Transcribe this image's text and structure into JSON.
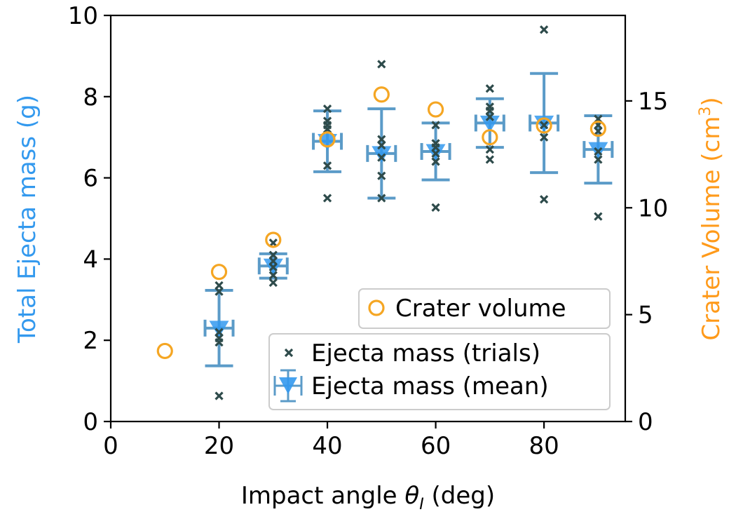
{
  "chart_data": {
    "type": "scatter",
    "xlabel_main": "Impact angle ",
    "xlabel_symbol": "θ",
    "xlabel_sub": "I",
    "xlabel_unit": " (deg)",
    "ylabel_left": "Total Ejecta mass (g)",
    "ylabel_right_main": "Crater Volume (cm",
    "ylabel_right_sup": "3",
    "ylabel_right_end": ")",
    "xlim": [
      0,
      95
    ],
    "ylim_left": [
      0,
      10
    ],
    "ylim_right": [
      0,
      19
    ],
    "x_ticks": [
      0,
      20,
      40,
      60,
      80
    ],
    "x_tick_labels": [
      "0",
      "20",
      "40",
      "60",
      "80"
    ],
    "y_left_ticks": [
      0,
      2,
      4,
      6,
      8,
      10
    ],
    "y_left_tick_labels": [
      "0",
      "2",
      "4",
      "6",
      "8",
      "10"
    ],
    "y_right_ticks": [
      0,
      5,
      10,
      15
    ],
    "y_right_tick_labels": [
      "0",
      "5",
      "10",
      "15"
    ],
    "colors": {
      "left_axis": "#3399ee",
      "right_axis": "#ff9a1a",
      "trials": "#2e4b4b",
      "mean": "#3399ee",
      "errorbar": "#5b9bc8",
      "crater": "#f5a623"
    },
    "series": [
      {
        "name": "Ejecta mass (trials)",
        "axis": "left",
        "points": [
          {
            "x": 20,
            "y": 0.63
          },
          {
            "x": 20,
            "y": 1.95
          },
          {
            "x": 20,
            "y": 2.05
          },
          {
            "x": 20,
            "y": 2.2
          },
          {
            "x": 20,
            "y": 3.2
          },
          {
            "x": 20,
            "y": 3.35
          },
          {
            "x": 30,
            "y": 3.42
          },
          {
            "x": 30,
            "y": 3.6
          },
          {
            "x": 30,
            "y": 3.8
          },
          {
            "x": 30,
            "y": 3.95
          },
          {
            "x": 30,
            "y": 4.1
          },
          {
            "x": 30,
            "y": 4.4
          },
          {
            "x": 40,
            "y": 5.5
          },
          {
            "x": 40,
            "y": 6.3
          },
          {
            "x": 40,
            "y": 7.2
          },
          {
            "x": 40,
            "y": 7.3
          },
          {
            "x": 40,
            "y": 7.4
          },
          {
            "x": 40,
            "y": 7.7
          },
          {
            "x": 50,
            "y": 5.5
          },
          {
            "x": 50,
            "y": 6.05
          },
          {
            "x": 50,
            "y": 6.5
          },
          {
            "x": 50,
            "y": 6.8
          },
          {
            "x": 50,
            "y": 6.95
          },
          {
            "x": 50,
            "y": 8.8
          },
          {
            "x": 60,
            "y": 5.27
          },
          {
            "x": 60,
            "y": 6.4
          },
          {
            "x": 60,
            "y": 6.6
          },
          {
            "x": 60,
            "y": 6.75
          },
          {
            "x": 60,
            "y": 6.85
          },
          {
            "x": 60,
            "y": 7.3
          },
          {
            "x": 70,
            "y": 6.45
          },
          {
            "x": 70,
            "y": 6.7
          },
          {
            "x": 70,
            "y": 7.5
          },
          {
            "x": 70,
            "y": 7.65
          },
          {
            "x": 70,
            "y": 7.75
          },
          {
            "x": 70,
            "y": 8.2
          },
          {
            "x": 80,
            "y": 5.47
          },
          {
            "x": 80,
            "y": 7.0
          },
          {
            "x": 80,
            "y": 7.3
          },
          {
            "x": 80,
            "y": 9.65
          },
          {
            "x": 90,
            "y": 5.05
          },
          {
            "x": 90,
            "y": 6.45
          },
          {
            "x": 90,
            "y": 6.65
          },
          {
            "x": 90,
            "y": 7.15
          },
          {
            "x": 90,
            "y": 7.3
          },
          {
            "x": 90,
            "y": 7.45
          }
        ]
      },
      {
        "name": "Ejecta mass (mean)",
        "axis": "left",
        "points": [
          {
            "x": 20,
            "y": 2.3,
            "err": 0.93
          },
          {
            "x": 30,
            "y": 3.83,
            "err": 0.3
          },
          {
            "x": 40,
            "y": 6.9,
            "err": 0.75
          },
          {
            "x": 50,
            "y": 6.6,
            "err": 1.1
          },
          {
            "x": 60,
            "y": 6.65,
            "err": 0.7
          },
          {
            "x": 70,
            "y": 7.35,
            "err": 0.6
          },
          {
            "x": 80,
            "y": 7.35,
            "err": 1.22
          },
          {
            "x": 90,
            "y": 6.7,
            "err": 0.83
          }
        ]
      },
      {
        "name": "Crater volume",
        "axis": "right",
        "points": [
          {
            "x": 10,
            "y": 3.3
          },
          {
            "x": 20,
            "y": 7.0
          },
          {
            "x": 30,
            "y": 8.5
          },
          {
            "x": 40,
            "y": 13.2
          },
          {
            "x": 50,
            "y": 15.3
          },
          {
            "x": 60,
            "y": 14.6
          },
          {
            "x": 70,
            "y": 13.3
          },
          {
            "x": 80,
            "y": 13.85
          },
          {
            "x": 90,
            "y": 13.7
          }
        ]
      }
    ],
    "legend": {
      "crater_label": "Crater volume",
      "trials_label": "Ejecta mass (trials)",
      "mean_label": "Ejecta mass (mean)"
    }
  }
}
